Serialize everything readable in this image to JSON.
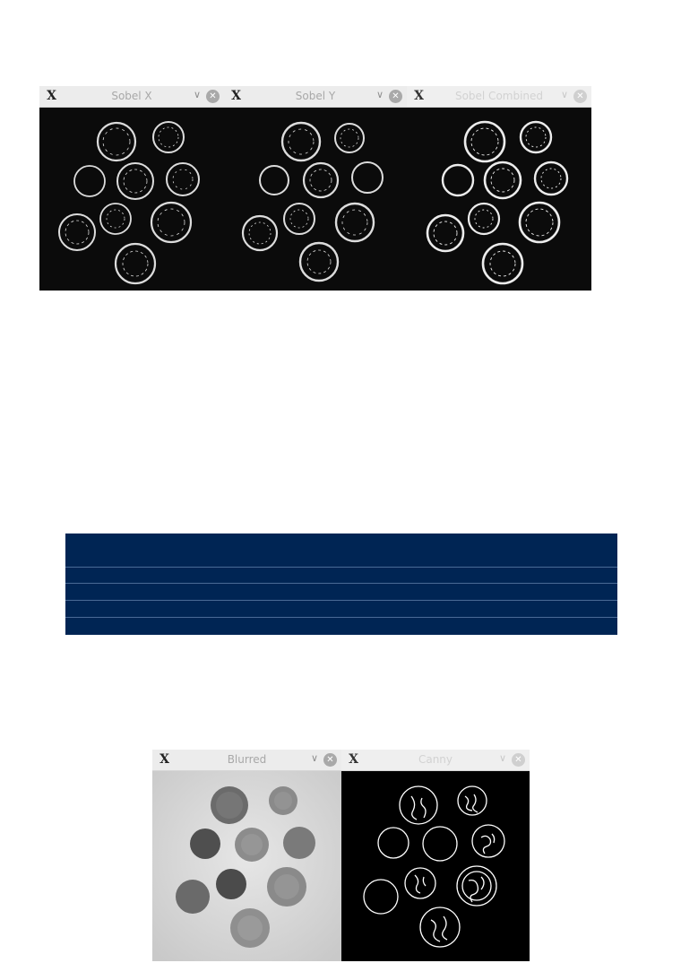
{
  "windows_top": [
    {
      "title": "Sobel X"
    },
    {
      "title": "Sobel Y"
    },
    {
      "title": "Sobel Combined"
    }
  ],
  "table": {
    "rows": 5
  },
  "windows_bottom": [
    {
      "title": "Blurred"
    },
    {
      "title": "Canny"
    }
  ],
  "colors": {
    "navy": "#002554",
    "titlebar": "#ececec"
  }
}
